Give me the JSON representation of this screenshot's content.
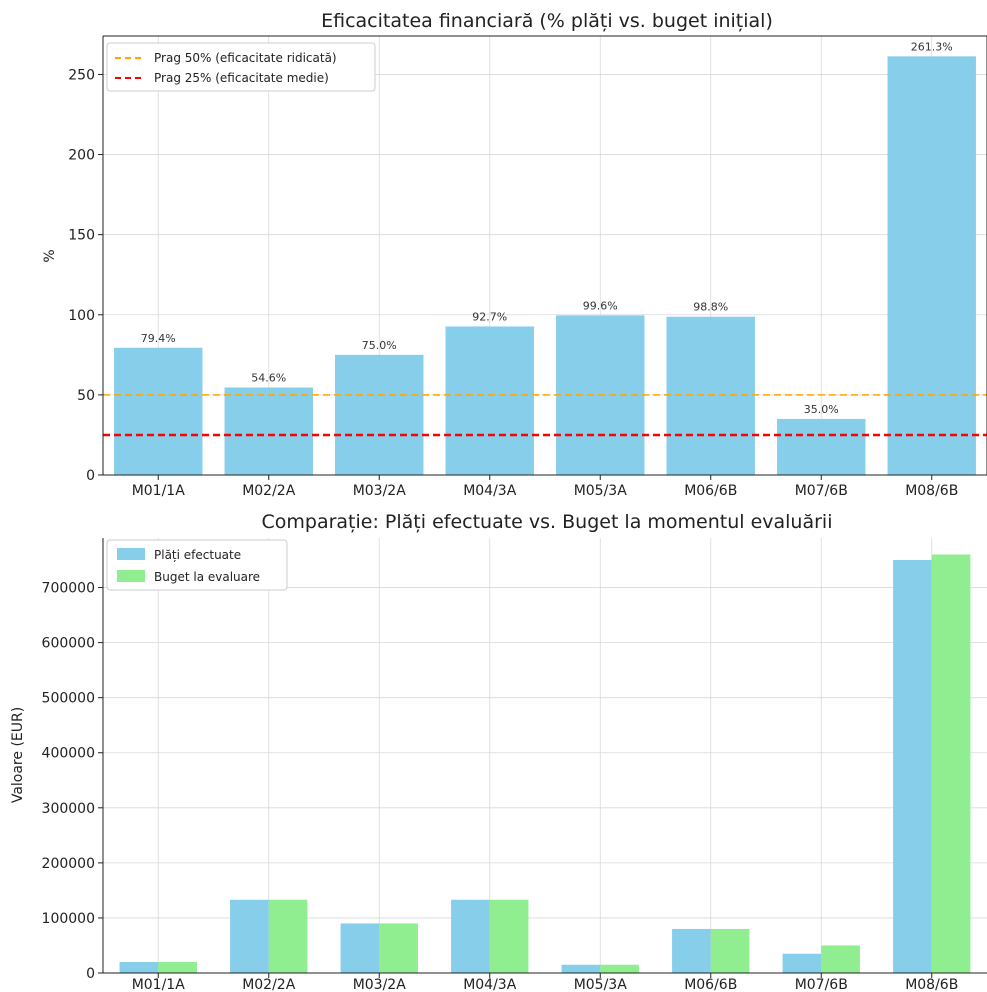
{
  "chart_data": [
    {
      "type": "bar",
      "title": "Eficacitatea financiară (% plăți vs. buget inițial)",
      "xlabel": "",
      "ylabel": "%",
      "categories": [
        "M01/1A",
        "M02/2A",
        "M03/2A",
        "M04/3A",
        "M05/3A",
        "M06/6B",
        "M07/6B",
        "M08/6B"
      ],
      "values": [
        79.4,
        54.6,
        75.0,
        92.7,
        99.6,
        98.8,
        35.0,
        261.3
      ],
      "data_labels": [
        "79.4%",
        "54.6%",
        "75.0%",
        "92.7%",
        "99.6%",
        "98.8%",
        "35.0%",
        "261.3%"
      ],
      "ylim": [
        0,
        274
      ],
      "yticks": [
        0,
        50,
        100,
        150,
        200,
        250
      ],
      "grid": true,
      "bar_color": "#87CEEB",
      "reference_lines": [
        {
          "name": "Prag 50% (eficacitate ridicată)",
          "value": 50,
          "color": "#FFA500",
          "style": "dashed"
        },
        {
          "name": "Prag 25% (eficacitate medie)",
          "value": 25,
          "color": "#FF0000",
          "style": "dashed"
        }
      ],
      "legend_position": "top-left"
    },
    {
      "type": "bar",
      "title": "Comparație: Plăți efectuate vs. Buget la momentul evaluării",
      "xlabel": "",
      "ylabel": "Valoare (EUR)",
      "categories": [
        "M01/1A",
        "M02/2A",
        "M03/2A",
        "M04/3A",
        "M05/3A",
        "M06/6B",
        "M07/6B",
        "M08/6B"
      ],
      "series": [
        {
          "name": "Plăți efectuate",
          "color": "#87CEEB",
          "values": [
            20000,
            133000,
            90000,
            133000,
            15000,
            80000,
            35000,
            750000
          ]
        },
        {
          "name": "Buget la evaluare",
          "color": "#90EE90",
          "values": [
            20000,
            133000,
            90000,
            133000,
            15000,
            80000,
            50000,
            760000
          ]
        }
      ],
      "ylim": [
        0,
        790000
      ],
      "yticks": [
        0,
        100000,
        200000,
        300000,
        400000,
        500000,
        600000,
        700000
      ],
      "grid": true,
      "legend_position": "top-left"
    }
  ]
}
